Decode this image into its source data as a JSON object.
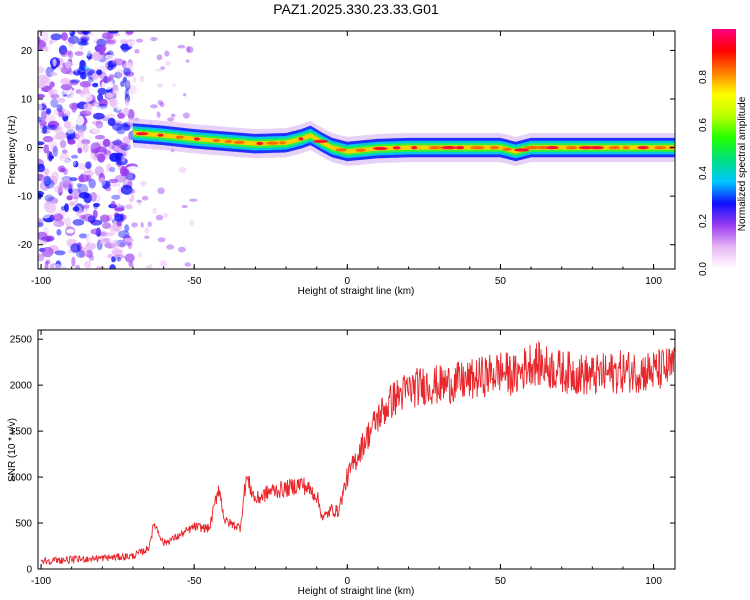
{
  "title": "PAZ1.2025.330.23.33.G01",
  "chart_data": [
    {
      "type": "heatmap",
      "title": "PAZ1.2025.330.23.33.G01",
      "xlabel": "Height of straight line (km)",
      "ylabel": "Frequency (Hz)",
      "xlim": [
        -101,
        107
      ],
      "ylim": [
        -25,
        24
      ],
      "x_ticks": [
        -100,
        -50,
        0,
        50,
        100
      ],
      "y_ticks": [
        -20,
        -10,
        0,
        10,
        20
      ],
      "x_tick_labels": [
        "-100",
        "-50",
        "0",
        "50",
        "100"
      ],
      "y_tick_labels": [
        "-20",
        "-10",
        "0",
        "10",
        "20"
      ],
      "colorbar": {
        "label": "Normalized spectral amplitude",
        "range": [
          0,
          1
        ],
        "ticks": [
          0.0,
          0.2,
          0.4,
          0.6,
          0.8
        ],
        "tick_labels": [
          "0.0",
          "0.2",
          "0.4",
          "0.6",
          "0.8"
        ],
        "colors": [
          "#ffffff",
          "#e9b8f5",
          "#9a3cf0",
          "#1010ff",
          "#00c8ff",
          "#00e080",
          "#20ff00",
          "#b8ff00",
          "#ffff00",
          "#ff8000",
          "#ff0000",
          "#ff0080"
        ]
      },
      "ridge_x": [
        -70,
        -60,
        -50,
        -40,
        -30,
        -20,
        -15,
        -12,
        -8,
        -5,
        0,
        5,
        10,
        20,
        30,
        40,
        50,
        55,
        60,
        70,
        80,
        90,
        100,
        107
      ],
      "ridge_freq": [
        3.0,
        2.5,
        1.8,
        1.3,
        0.8,
        1.0,
        1.8,
        2.5,
        1.0,
        0.0,
        -0.8,
        -0.5,
        -0.2,
        0.0,
        0.0,
        0.0,
        0.0,
        -0.8,
        0.0,
        0.0,
        0.0,
        0.0,
        0.0,
        0.0
      ],
      "noise_region_x": [
        -100,
        -70
      ]
    },
    {
      "type": "line",
      "xlabel": "Height of straight line (km)",
      "ylabel": "SNR (10 * v/v)",
      "xlim": [
        -101,
        107
      ],
      "ylim": [
        0,
        2600
      ],
      "x_ticks": [
        -100,
        -50,
        0,
        50,
        100
      ],
      "y_ticks": [
        0,
        500,
        1000,
        1500,
        2000,
        2500
      ],
      "x_tick_labels": [
        "-100",
        "-50",
        "0",
        "50",
        "100"
      ],
      "y_tick_labels": [
        "0",
        "500",
        "1000",
        "1500",
        "2000",
        "2500"
      ],
      "line_color": "#e8262b",
      "x": [
        -100,
        -90,
        -80,
        -70,
        -65,
        -63,
        -60,
        -55,
        -50,
        -45,
        -42,
        -40,
        -35,
        -33,
        -30,
        -25,
        -20,
        -15,
        -10,
        -8,
        -5,
        -3,
        0,
        5,
        10,
        15,
        20,
        25,
        30,
        40,
        50,
        55,
        60,
        70,
        80,
        90,
        100,
        107
      ],
      "y": [
        90,
        100,
        120,
        140,
        220,
        500,
        280,
        360,
        460,
        440,
        900,
        520,
        450,
        1000,
        750,
        850,
        870,
        930,
        800,
        550,
        650,
        620,
        1000,
        1350,
        1650,
        1850,
        1950,
        2000,
        2000,
        2050,
        2150,
        2100,
        2250,
        2150,
        2100,
        2150,
        2150,
        2200
      ]
    }
  ]
}
